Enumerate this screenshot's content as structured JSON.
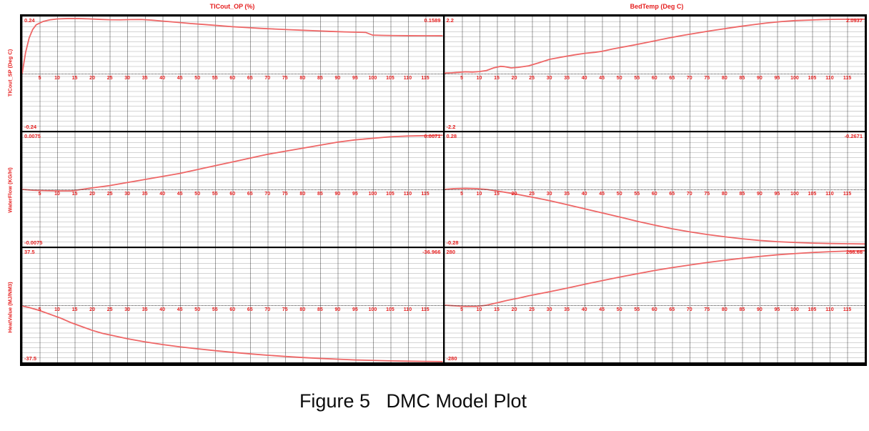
{
  "figure": {
    "caption": "Figure 5   DMC Model Plot"
  },
  "chart_data": {
    "type": "line",
    "description": "DMC model step-response matrix: 3 output rows x 2 input columns, red response curves on gray engineering grid, dotted zero line at mid-height of each subplot",
    "columns": [
      "TICout_OP (%)",
      "BedTemp (Deg C)"
    ],
    "rows": [
      "TICout_SP (Deg C)",
      "WaterFlow (KG/H)",
      "HeatValue (MJ/NM3)"
    ],
    "x_range": [
      0,
      120
    ],
    "xticks": [
      5,
      10,
      15,
      20,
      25,
      30,
      35,
      40,
      45,
      50,
      55,
      60,
      65,
      70,
      75,
      80,
      85,
      90,
      95,
      100,
      105,
      110,
      115
    ],
    "grid": true,
    "legend": "none",
    "curve_color": "#ee6666",
    "label_color": "#e51f1f",
    "plots": [
      {
        "row": "TICout_SP (Deg C)",
        "col": "TICout_OP (%)",
        "max_label": "0.24",
        "min_label": "-0.24",
        "final_label": "0.1589",
        "scale": 0.24,
        "points": [
          [
            0,
            0
          ],
          [
            1,
            0.09
          ],
          [
            2,
            0.15
          ],
          [
            3,
            0.185
          ],
          [
            4,
            0.205
          ],
          [
            6,
            0.219
          ],
          [
            8,
            0.226
          ],
          [
            10,
            0.2295
          ],
          [
            13,
            0.2312
          ],
          [
            16,
            0.2312
          ],
          [
            19,
            0.2298
          ],
          [
            22,
            0.2278
          ],
          [
            25,
            0.2262
          ],
          [
            28,
            0.2258
          ],
          [
            31,
            0.2268
          ],
          [
            34,
            0.2272
          ],
          [
            37,
            0.2245
          ],
          [
            40,
            0.2205
          ],
          [
            44,
            0.2155
          ],
          [
            48,
            0.2105
          ],
          [
            52,
            0.206
          ],
          [
            56,
            0.2015
          ],
          [
            60,
            0.197
          ],
          [
            64,
            0.1935
          ],
          [
            68,
            0.19
          ],
          [
            72,
            0.1872
          ],
          [
            76,
            0.1845
          ],
          [
            80,
            0.182
          ],
          [
            84,
            0.1795
          ],
          [
            88,
            0.1772
          ],
          [
            92,
            0.1752
          ],
          [
            95,
            0.174
          ],
          [
            98,
            0.173
          ],
          [
            100,
            0.1615
          ],
          [
            103,
            0.1605
          ],
          [
            106,
            0.1598
          ],
          [
            110,
            0.1592
          ],
          [
            115,
            0.159
          ],
          [
            120,
            0.1589
          ]
        ]
      },
      {
        "row": "TICout_SP (Deg C)",
        "col": "BedTemp (Deg C)",
        "max_label": "2.2",
        "min_label": "-2.2",
        "final_label": "2.0937",
        "scale": 2.2,
        "points": [
          [
            0,
            0.02
          ],
          [
            2,
            0.03
          ],
          [
            4,
            0.05
          ],
          [
            6,
            0.07
          ],
          [
            8,
            0.06
          ],
          [
            10,
            0.08
          ],
          [
            12,
            0.12
          ],
          [
            14,
            0.22
          ],
          [
            16,
            0.28
          ],
          [
            17,
            0.27
          ],
          [
            19,
            0.22
          ],
          [
            21,
            0.24
          ],
          [
            24,
            0.3
          ],
          [
            27,
            0.42
          ],
          [
            30,
            0.55
          ],
          [
            34,
            0.65
          ],
          [
            37,
            0.72
          ],
          [
            40,
            0.78
          ],
          [
            43,
            0.82
          ],
          [
            45,
            0.86
          ],
          [
            48,
            0.95
          ],
          [
            52,
            1.05
          ],
          [
            56,
            1.15
          ],
          [
            60,
            1.26
          ],
          [
            64,
            1.37
          ],
          [
            68,
            1.47
          ],
          [
            72,
            1.56
          ],
          [
            76,
            1.65
          ],
          [
            80,
            1.73
          ],
          [
            84,
            1.81
          ],
          [
            88,
            1.88
          ],
          [
            92,
            1.95
          ],
          [
            96,
            2.0
          ],
          [
            100,
            2.04
          ],
          [
            104,
            2.06
          ],
          [
            108,
            2.08
          ],
          [
            112,
            2.09
          ],
          [
            116,
            2.093
          ],
          [
            120,
            2.0937
          ]
        ]
      },
      {
        "row": "WaterFlow (KG/H)",
        "col": "TICout_OP (%)",
        "max_label": "0.0075",
        "min_label": "-0.0075",
        "final_label": "0.0071",
        "scale": 0.0075,
        "points": [
          [
            0,
            0
          ],
          [
            3,
            -0.0001
          ],
          [
            6,
            -0.00015
          ],
          [
            10,
            -0.0002
          ],
          [
            14,
            -0.0002
          ],
          [
            17,
            0
          ],
          [
            20,
            0.0002
          ],
          [
            25,
            0.0005
          ],
          [
            30,
            0.0009
          ],
          [
            35,
            0.0013
          ],
          [
            40,
            0.0017
          ],
          [
            45,
            0.0021
          ],
          [
            50,
            0.0026
          ],
          [
            55,
            0.0031
          ],
          [
            60,
            0.0036
          ],
          [
            65,
            0.0041
          ],
          [
            70,
            0.0046
          ],
          [
            75,
            0.005
          ],
          [
            80,
            0.0054
          ],
          [
            85,
            0.0058
          ],
          [
            90,
            0.0062
          ],
          [
            95,
            0.0065
          ],
          [
            100,
            0.0067
          ],
          [
            105,
            0.0069
          ],
          [
            110,
            0.007
          ],
          [
            115,
            0.00705
          ],
          [
            120,
            0.0071
          ]
        ]
      },
      {
        "row": "WaterFlow (KG/H)",
        "col": "BedTemp (Deg C)",
        "max_label": "0.28",
        "min_label": "-0.28",
        "final_label": "-0.2671",
        "scale": 0.28,
        "points": [
          [
            0,
            0
          ],
          [
            3,
            0.004
          ],
          [
            6,
            0.005
          ],
          [
            9,
            0.004
          ],
          [
            12,
            0
          ],
          [
            15,
            -0.008
          ],
          [
            18,
            -0.016
          ],
          [
            21,
            -0.025
          ],
          [
            25,
            -0.038
          ],
          [
            30,
            -0.055
          ],
          [
            35,
            -0.075
          ],
          [
            40,
            -0.095
          ],
          [
            45,
            -0.115
          ],
          [
            50,
            -0.135
          ],
          [
            55,
            -0.156
          ],
          [
            60,
            -0.175
          ],
          [
            65,
            -0.193
          ],
          [
            70,
            -0.208
          ],
          [
            75,
            -0.221
          ],
          [
            80,
            -0.232
          ],
          [
            85,
            -0.242
          ],
          [
            90,
            -0.25
          ],
          [
            95,
            -0.256
          ],
          [
            100,
            -0.26
          ],
          [
            105,
            -0.263
          ],
          [
            110,
            -0.265
          ],
          [
            115,
            -0.266
          ],
          [
            120,
            -0.2671
          ]
        ]
      },
      {
        "row": "HeatValue (MJ/NM3)",
        "col": "TICout_OP (%)",
        "max_label": "37.5",
        "min_label": "-37.5",
        "final_label": "-36.966",
        "scale": 37.5,
        "points": [
          [
            0,
            -0.5
          ],
          [
            2,
            -1.5
          ],
          [
            5,
            -3.5
          ],
          [
            8,
            -6
          ],
          [
            11,
            -8.5
          ],
          [
            14,
            -11.5
          ],
          [
            17,
            -14
          ],
          [
            20,
            -16.5
          ],
          [
            23,
            -18.5
          ],
          [
            26,
            -20
          ],
          [
            30,
            -22
          ],
          [
            35,
            -24
          ],
          [
            40,
            -25.8
          ],
          [
            45,
            -27.3
          ],
          [
            50,
            -28.6
          ],
          [
            55,
            -29.8
          ],
          [
            60,
            -30.9
          ],
          [
            65,
            -31.9
          ],
          [
            70,
            -32.8
          ],
          [
            75,
            -33.6
          ],
          [
            80,
            -34.3
          ],
          [
            85,
            -34.9
          ],
          [
            90,
            -35.4
          ],
          [
            95,
            -35.9
          ],
          [
            100,
            -36.2
          ],
          [
            105,
            -36.5
          ],
          [
            110,
            -36.7
          ],
          [
            115,
            -36.85
          ],
          [
            120,
            -36.966
          ]
        ]
      },
      {
        "row": "HeatValue (MJ/NM3)",
        "col": "BedTemp (Deg C)",
        "max_label": "280",
        "min_label": "-280",
        "final_label": "266.66",
        "scale": 280,
        "points": [
          [
            0,
            0
          ],
          [
            3,
            -3
          ],
          [
            6,
            -6
          ],
          [
            9,
            -6
          ],
          [
            12,
            0
          ],
          [
            15,
            12
          ],
          [
            18,
            24
          ],
          [
            21,
            34
          ],
          [
            24,
            46
          ],
          [
            27,
            56
          ],
          [
            30,
            66
          ],
          [
            34,
            80
          ],
          [
            38,
            95
          ],
          [
            42,
            110
          ],
          [
            46,
            124
          ],
          [
            50,
            138
          ],
          [
            55,
            154
          ],
          [
            60,
            170
          ],
          [
            65,
            184
          ],
          [
            70,
            197
          ],
          [
            75,
            209
          ],
          [
            80,
            220
          ],
          [
            85,
            230
          ],
          [
            90,
            239
          ],
          [
            95,
            247
          ],
          [
            100,
            253
          ],
          [
            105,
            258
          ],
          [
            110,
            262
          ],
          [
            115,
            265
          ],
          [
            120,
            266.66
          ]
        ]
      }
    ]
  }
}
